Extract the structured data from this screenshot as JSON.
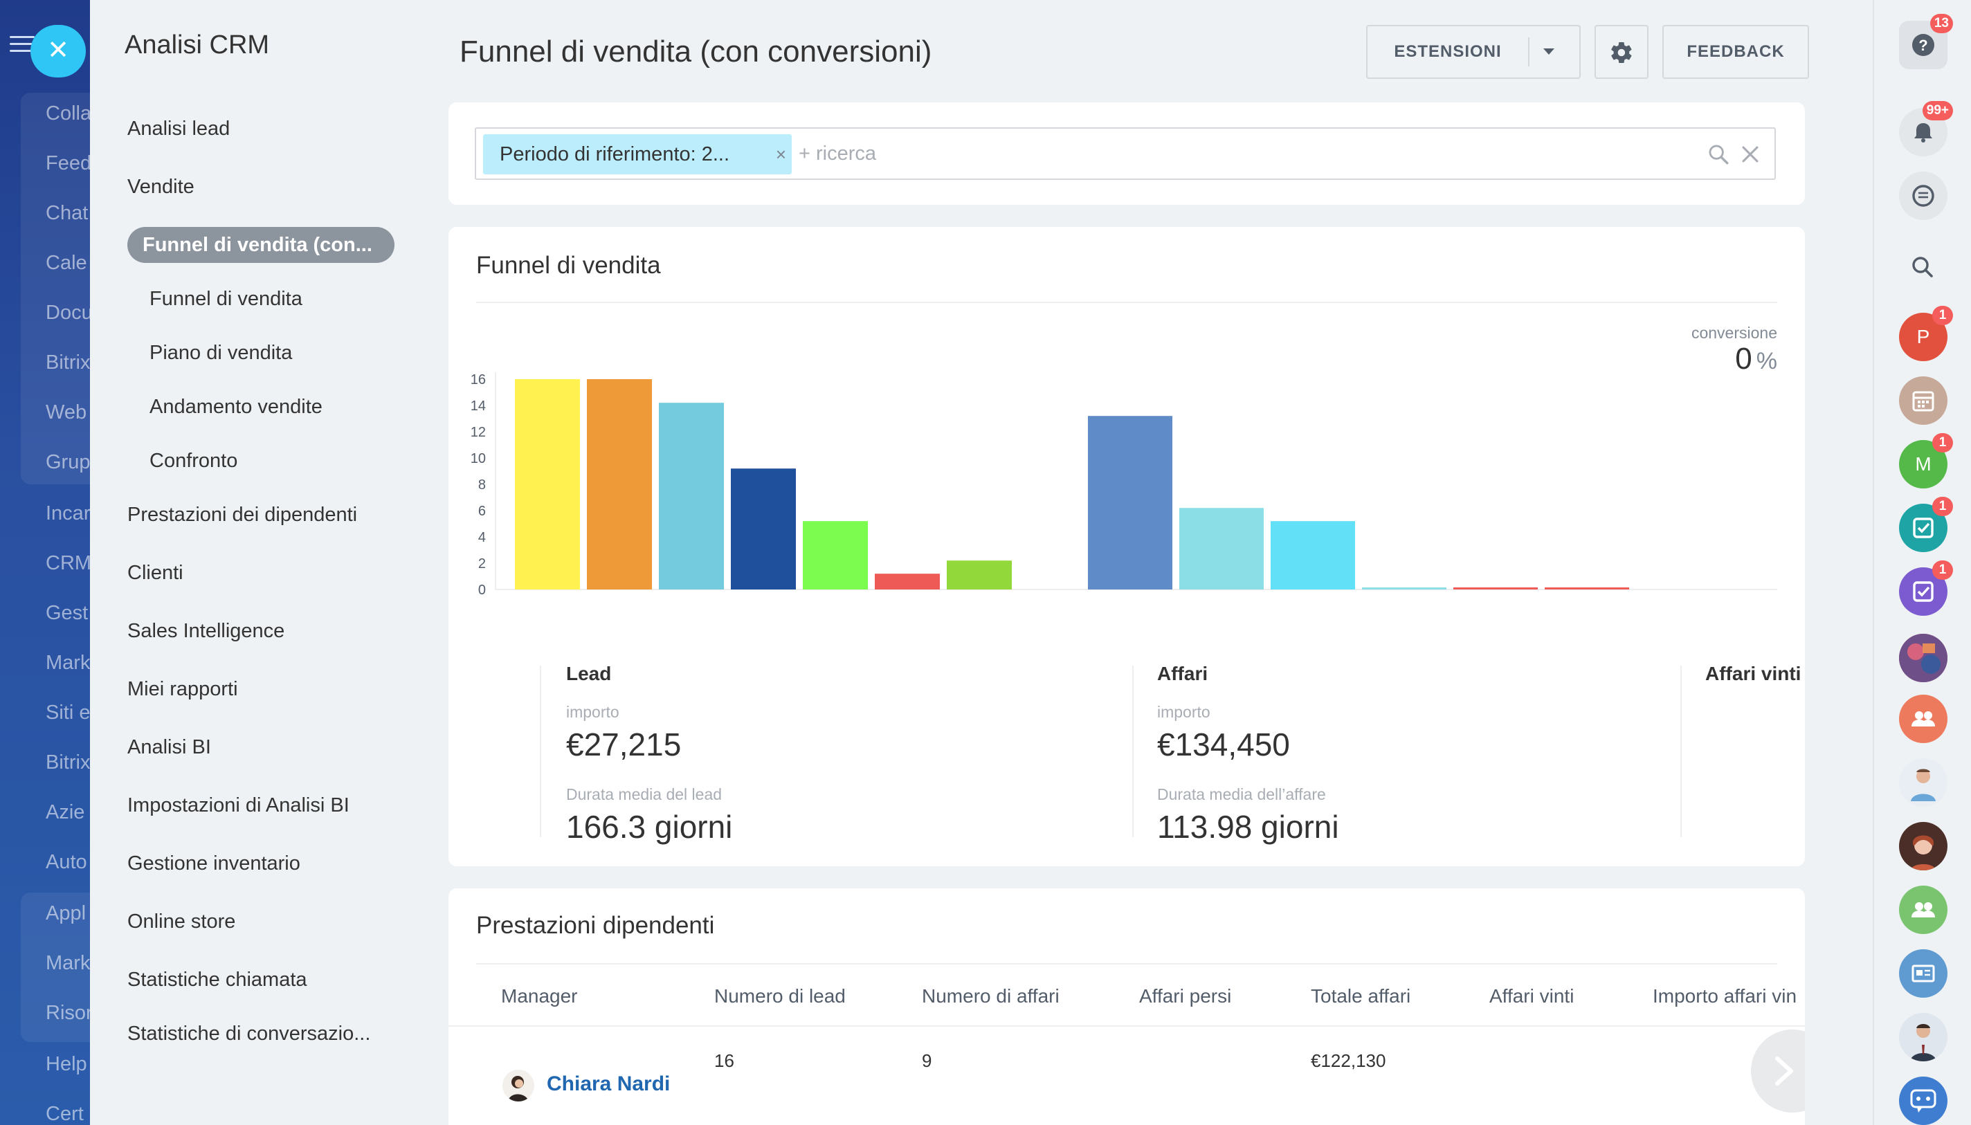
{
  "left_nav": {
    "items": [
      "Colla",
      "Feed",
      "Chat",
      "Cale",
      "Docu",
      "Bitrix",
      "Web",
      "Grup",
      "Incar",
      "CRM",
      "Gest",
      "Mark",
      "Siti e",
      "Bitrix",
      "Azie",
      "Auto",
      "Appl",
      "Mark",
      "Risor",
      "Help",
      "Cert"
    ]
  },
  "menu": {
    "title": "Analisi CRM",
    "items_before": [
      "Analisi lead",
      "Vendite"
    ],
    "active": "Funnel di vendita (con...",
    "subitems": [
      "Funnel di vendita",
      "Piano di vendita",
      "Andamento vendite",
      "Confronto"
    ],
    "items_after": [
      "Prestazioni dei dipendenti",
      "Clienti",
      "Sales Intelligence",
      "Miei rapporti",
      "Analisi BI",
      "Impostazioni di Analisi BI",
      "Gestione inventario",
      "Online store",
      "Statistiche chiamata",
      "Statistiche di conversazio..."
    ]
  },
  "header": {
    "title": "Funnel di vendita (con conversioni)",
    "extensions_label": "ESTENSIONI",
    "feedback_label": "FEEDBACK"
  },
  "filter": {
    "chip_label": "Periodo di riferimento: 2...",
    "chip_remove": "×",
    "search_placeholder": "+ ricerca"
  },
  "funnel": {
    "title": "Funnel di vendita",
    "conversion_label": "conversione",
    "conversion_value": "0",
    "conversion_unit": "%",
    "lead": {
      "heading": "Lead",
      "amount_label": "importo",
      "amount": "€27,215",
      "duration_label": "Durata media del lead",
      "duration": "166.3 giorni"
    },
    "deals": {
      "heading": "Affari",
      "amount_label": "importo",
      "amount": "€134,450",
      "duration_label": "Durata media dell’affare",
      "duration": "113.98 giorni"
    },
    "won": {
      "heading": "Affari vinti"
    }
  },
  "chart_data": {
    "type": "bar",
    "ylim": [
      0,
      16
    ],
    "y_ticks": [
      0,
      2,
      4,
      6,
      8,
      10,
      12,
      14,
      16
    ],
    "grid": false,
    "values": [
      16,
      16,
      14.2,
      9.2,
      5.2,
      1.2,
      2.2,
      13.2,
      6.2,
      5.2,
      0.1,
      0.1,
      0.1
    ],
    "colors": [
      "#fef150",
      "#ef9a38",
      "#73cbdd",
      "#1f509b",
      "#7bfc4e",
      "#ee5a55",
      "#92d83b",
      "#5f8bc8",
      "#8bdde6",
      "#62e0f8",
      "#8bdde6",
      "#ee5a55",
      "#ee5a55"
    ],
    "groups": [
      "Lead",
      "Affari",
      "Affari vinti"
    ]
  },
  "performance": {
    "title": "Prestazioni dipendenti",
    "columns": [
      "Manager",
      "Numero di lead",
      "Numero di affari",
      "Affari persi",
      "Totale affari",
      "Affari vinti",
      "Importo affari vin"
    ],
    "rows": [
      {
        "manager": "Chiara Nardi",
        "leads": "16",
        "deals": "9",
        "lost": "",
        "total": "€122,130",
        "won": "",
        "won_amount": ""
      }
    ]
  },
  "right_bar": {
    "help_badge": "13",
    "notifications_badge": "99+",
    "avatar_p_letter": "P",
    "avatar_p_badge": "1",
    "avatar_m_letter": "M",
    "avatar_m_badge": "1",
    "tasks_badge": "1",
    "tasks2_badge": "1"
  }
}
